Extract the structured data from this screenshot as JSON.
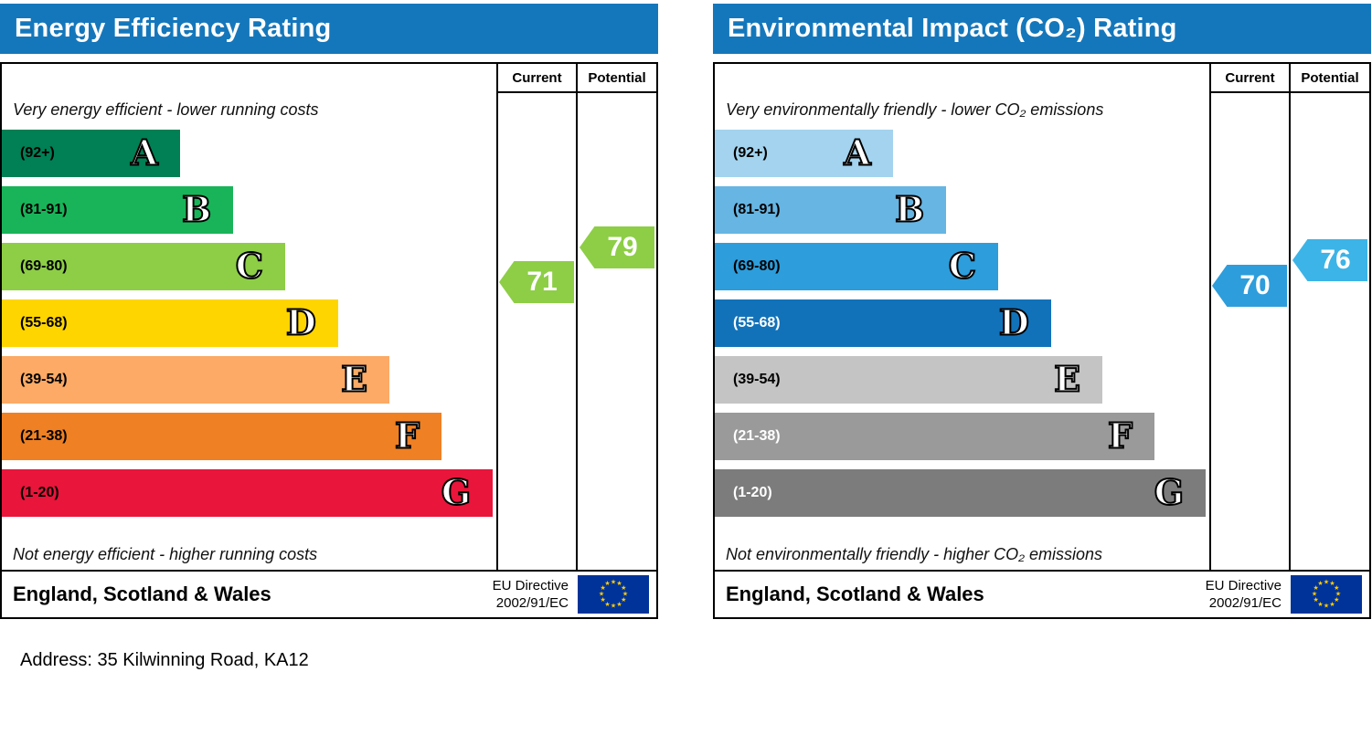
{
  "page": {
    "address_line": "Address: 35 Kilwinning Road, KA12"
  },
  "chart_data": [
    {
      "type": "bar",
      "subtype": "epc-rating",
      "title": "Energy Efficiency Rating",
      "column_headers": [
        "Current",
        "Potential"
      ],
      "top_caption": "Very energy efficient - lower running costs",
      "bottom_caption": "Not energy efficient - higher running costs",
      "score_range": [
        1,
        100
      ],
      "bands": [
        {
          "letter": "A",
          "range_label": "(92+)",
          "min": 92,
          "max": 100,
          "width_pct": 36.0,
          "color": "#008054",
          "label_color": "#000000"
        },
        {
          "letter": "B",
          "range_label": "(81-91)",
          "min": 81,
          "max": 91,
          "width_pct": 46.8,
          "color": "#19b459",
          "label_color": "#000000"
        },
        {
          "letter": "C",
          "range_label": "(69-80)",
          "min": 69,
          "max": 80,
          "width_pct": 57.3,
          "color": "#8dce46",
          "label_color": "#000000"
        },
        {
          "letter": "D",
          "range_label": "(55-68)",
          "min": 55,
          "max": 68,
          "width_pct": 68.0,
          "color": "#ffd500",
          "label_color": "#000000"
        },
        {
          "letter": "E",
          "range_label": "(39-54)",
          "min": 39,
          "max": 54,
          "width_pct": 78.4,
          "color": "#fcaa65",
          "label_color": "#000000"
        },
        {
          "letter": "F",
          "range_label": "(21-38)",
          "min": 21,
          "max": 38,
          "width_pct": 88.9,
          "color": "#ef8023",
          "label_color": "#000000"
        },
        {
          "letter": "G",
          "range_label": "(1-20)",
          "min": 1,
          "max": 20,
          "width_pct": 99.3,
          "color": "#e9153b",
          "label_color": "#000000"
        }
      ],
      "current": {
        "value": 71,
        "band": "C",
        "color": "#8dce46"
      },
      "potential": {
        "value": 79,
        "band": "C",
        "color": "#8dce46"
      },
      "footer": {
        "region": "England, Scotland & Wales",
        "directive_lines": [
          "EU Directive",
          "2002/91/EC"
        ]
      }
    },
    {
      "type": "bar",
      "subtype": "epc-rating",
      "title": "Environmental Impact (CO₂) Rating",
      "column_headers": [
        "Current",
        "Potential"
      ],
      "top_caption": "Very environmentally friendly - lower CO₂ emissions",
      "bottom_caption": "Not environmentally friendly - higher CO₂ emissions",
      "score_range": [
        1,
        100
      ],
      "bands": [
        {
          "letter": "A",
          "range_label": "(92+)",
          "min": 92,
          "max": 100,
          "width_pct": 36.0,
          "color": "#a3d3ee",
          "label_color": "#000000"
        },
        {
          "letter": "B",
          "range_label": "(81-91)",
          "min": 81,
          "max": 91,
          "width_pct": 46.8,
          "color": "#66b5e3",
          "label_color": "#000000"
        },
        {
          "letter": "C",
          "range_label": "(69-80)",
          "min": 69,
          "max": 80,
          "width_pct": 57.3,
          "color": "#2d9ddb",
          "label_color": "#000000"
        },
        {
          "letter": "D",
          "range_label": "(55-68)",
          "min": 55,
          "max": 68,
          "width_pct": 68.0,
          "color": "#1272b9",
          "label_color": "#ffffff"
        },
        {
          "letter": "E",
          "range_label": "(39-54)",
          "min": 39,
          "max": 54,
          "width_pct": 78.4,
          "color": "#c4c4c4",
          "label_color": "#000000"
        },
        {
          "letter": "F",
          "range_label": "(21-38)",
          "min": 21,
          "max": 38,
          "width_pct": 88.9,
          "color": "#9a9a9a",
          "label_color": "#ffffff"
        },
        {
          "letter": "G",
          "range_label": "(1-20)",
          "min": 1,
          "max": 20,
          "width_pct": 99.3,
          "color": "#7c7c7c",
          "label_color": "#ffffff"
        }
      ],
      "current": {
        "value": 70,
        "band": "C",
        "color": "#2d9ddb"
      },
      "potential": {
        "value": 76,
        "band": "C",
        "color": "#3cb4e7"
      },
      "footer": {
        "region": "England, Scotland & Wales",
        "directive_lines": [
          "EU Directive",
          "2002/91/EC"
        ]
      }
    }
  ]
}
